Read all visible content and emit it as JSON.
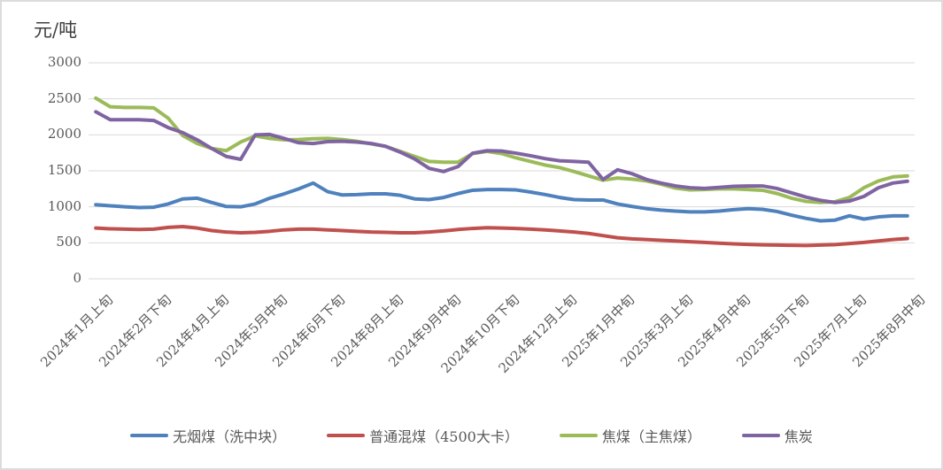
{
  "chart_data": {
    "type": "line",
    "title": "",
    "ylabel": "元/吨",
    "xlabel": "",
    "ylim": [
      0,
      3000
    ],
    "y_ticks": [
      0,
      500,
      1000,
      1500,
      2000,
      2500,
      3000
    ],
    "grid": "horizontal",
    "legend_position": "bottom",
    "x_tick_interval": 4,
    "x_tick_labels": [
      "2024年1月上旬",
      "2024年2月下旬",
      "2024年4月上旬",
      "2024年5月中旬",
      "2024年6月下旬",
      "2024年8月上旬",
      "2024年9月中旬",
      "2024年10月下旬",
      "2024年12月上旬",
      "2025年1月中旬",
      "2025年3月上旬",
      "2025年4月中旬",
      "2025年5月下旬",
      "2025年7月上旬",
      "2025年8月中旬"
    ],
    "categories": [
      "2024年1月上旬",
      "2024年1月中旬",
      "2024年1月下旬",
      "2024年2月上旬",
      "2024年2月下旬",
      "2024年3月上旬",
      "2024年3月中旬",
      "2024年3月下旬",
      "2024年4月上旬",
      "2024年4月中旬",
      "2024年4月下旬",
      "2024年5月上旬",
      "2024年5月中旬",
      "2024年5月下旬",
      "2024年6月上旬",
      "2024年6月中旬",
      "2024年6月下旬",
      "2024年7月上旬",
      "2024年7月中旬",
      "2024年7月下旬",
      "2024年8月上旬",
      "2024年8月中旬",
      "2024年8月下旬",
      "2024年9月上旬",
      "2024年9月中旬",
      "2024年9月下旬",
      "2024年10月上旬",
      "2024年10月中旬",
      "2024年10月下旬",
      "2024年11月上旬",
      "2024年11月中旬",
      "2024年11月下旬",
      "2024年12月上旬",
      "2024年12月中旬",
      "2024年12月下旬",
      "2025年1月上旬",
      "2025年1月中旬",
      "2025年1月下旬",
      "2025年2月上旬",
      "2025年2月下旬",
      "2025年3月上旬",
      "2025年3月中旬",
      "2025年3月下旬",
      "2025年4月上旬",
      "2025年4月中旬",
      "2025年4月下旬",
      "2025年5月上旬",
      "2025年5月中旬",
      "2025年5月下旬",
      "2025年6月上旬",
      "2025年6月中旬",
      "2025年6月下旬",
      "2025年7月上旬",
      "2025年7月中旬",
      "2025年7月下旬",
      "2025年8月上旬",
      "2025年8月中旬"
    ],
    "series": [
      {
        "name": "无烟煤（洗中块）",
        "color": "#4F81BD",
        "values": [
          1030,
          1015,
          1000,
          990,
          995,
          1040,
          1110,
          1120,
          1060,
          1005,
          1000,
          1040,
          1120,
          1180,
          1250,
          1330,
          1210,
          1165,
          1170,
          1180,
          1180,
          1160,
          1110,
          1100,
          1130,
          1185,
          1230,
          1240,
          1240,
          1235,
          1205,
          1170,
          1130,
          1100,
          1095,
          1095,
          1040,
          1005,
          975,
          955,
          940,
          930,
          930,
          940,
          960,
          975,
          965,
          935,
          885,
          840,
          805,
          815,
          875,
          830,
          860,
          875,
          875
        ]
      },
      {
        "name": "普通混煤（4500大卡）",
        "color": "#C0504D",
        "values": [
          705,
          695,
          690,
          685,
          690,
          715,
          725,
          705,
          670,
          650,
          640,
          645,
          660,
          680,
          690,
          690,
          680,
          670,
          660,
          650,
          645,
          640,
          640,
          650,
          665,
          685,
          700,
          710,
          705,
          700,
          690,
          680,
          665,
          650,
          630,
          600,
          570,
          555,
          545,
          535,
          525,
          515,
          505,
          495,
          485,
          478,
          472,
          468,
          465,
          462,
          468,
          475,
          490,
          505,
          525,
          545,
          560
        ]
      },
      {
        "name": "焦煤（主焦煤）",
        "color": "#9BBB59",
        "values": [
          2510,
          2390,
          2380,
          2380,
          2375,
          2230,
          1990,
          1880,
          1810,
          1780,
          1900,
          1985,
          1950,
          1930,
          1935,
          1945,
          1950,
          1935,
          1910,
          1875,
          1840,
          1770,
          1700,
          1630,
          1620,
          1620,
          1740,
          1770,
          1740,
          1680,
          1630,
          1580,
          1545,
          1490,
          1430,
          1370,
          1400,
          1385,
          1360,
          1315,
          1260,
          1235,
          1240,
          1250,
          1250,
          1240,
          1230,
          1185,
          1120,
          1075,
          1060,
          1070,
          1130,
          1265,
          1360,
          1415,
          1430
        ]
      },
      {
        "name": "焦炭",
        "color": "#8064A2",
        "values": [
          2320,
          2210,
          2210,
          2210,
          2200,
          2100,
          2030,
          1930,
          1810,
          1700,
          1660,
          2000,
          2005,
          1950,
          1890,
          1880,
          1905,
          1910,
          1900,
          1880,
          1840,
          1760,
          1665,
          1535,
          1490,
          1560,
          1745,
          1780,
          1775,
          1745,
          1710,
          1670,
          1640,
          1630,
          1620,
          1380,
          1515,
          1460,
          1380,
          1330,
          1290,
          1265,
          1255,
          1270,
          1285,
          1290,
          1290,
          1255,
          1195,
          1135,
          1090,
          1060,
          1080,
          1145,
          1265,
          1330,
          1355
        ]
      }
    ],
    "style": {
      "gridline_color": "#D9D9D9",
      "tick_label_color": "#595959",
      "line_width": 4,
      "background": "#FFFFFF",
      "border_color": "#DCDCDC"
    }
  }
}
